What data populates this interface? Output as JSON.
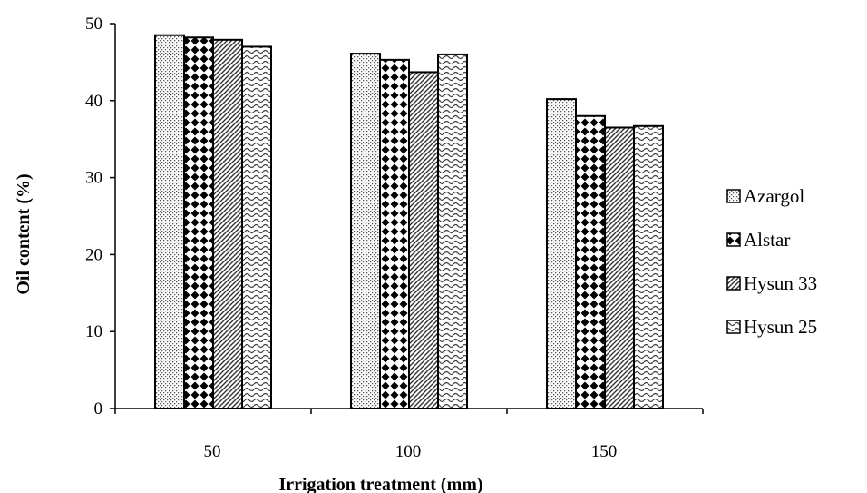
{
  "chart_data": {
    "type": "bar",
    "xlabel": "Irrigation treatment (mm)",
    "ylabel": "Oil content (%)",
    "categories": [
      "50",
      "100",
      "150"
    ],
    "ylim": [
      0,
      50
    ],
    "yticks": [
      0,
      10,
      20,
      30,
      40,
      50
    ],
    "grid": false,
    "legend_position": "right",
    "series": [
      {
        "name": "Azargol",
        "pattern": "fine-dots",
        "values": [
          48.5,
          46.1,
          40.2
        ]
      },
      {
        "name": "Alstar",
        "pattern": "diamonds",
        "values": [
          48.2,
          45.3,
          38.0
        ]
      },
      {
        "name": "Hysun 33",
        "pattern": "diagonal-stripes",
        "values": [
          47.9,
          43.7,
          36.5
        ]
      },
      {
        "name": "Hysun 25",
        "pattern": "waves",
        "values": [
          47.0,
          46.0,
          36.7
        ]
      }
    ]
  }
}
